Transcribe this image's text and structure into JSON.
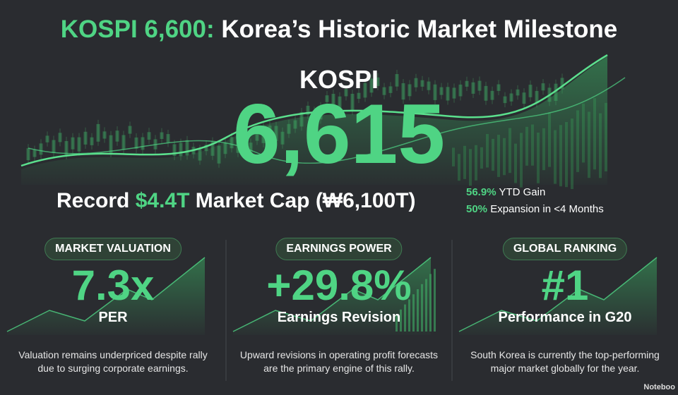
{
  "header": {
    "title_highlight": "KOSPI 6,600:",
    "title_rest": "Korea’s Historic Market Milestone"
  },
  "hero": {
    "index_name": "KOSPI",
    "index_value": "6,615",
    "cap_line": {
      "prefix": "Record",
      "highlight": "$4.4T",
      "suffix": "Market Cap (₩6,100T)"
    },
    "stats": [
      {
        "value": "56.9%",
        "label": "YTD Gain"
      },
      {
        "value": "50%",
        "label": "Expansion in <4 Months"
      }
    ]
  },
  "cards": [
    {
      "badge": "MARKET VALUATION",
      "value": "7.3x",
      "label": "PER",
      "description": "Valuation remains underpriced despite rally due to surging corporate earnings."
    },
    {
      "badge": "EARNINGS POWER",
      "value": "+29.8%",
      "label": "Earnings Revision",
      "description": "Upward revisions in operating profit forecasts are the primary engine of this rally."
    },
    {
      "badge": "GLOBAL RANKING",
      "value": "#1",
      "label": "Performance in G20",
      "description": "South Korea is currently the top-performing major market globally for the year."
    }
  ],
  "watermark": "Noteboo"
}
